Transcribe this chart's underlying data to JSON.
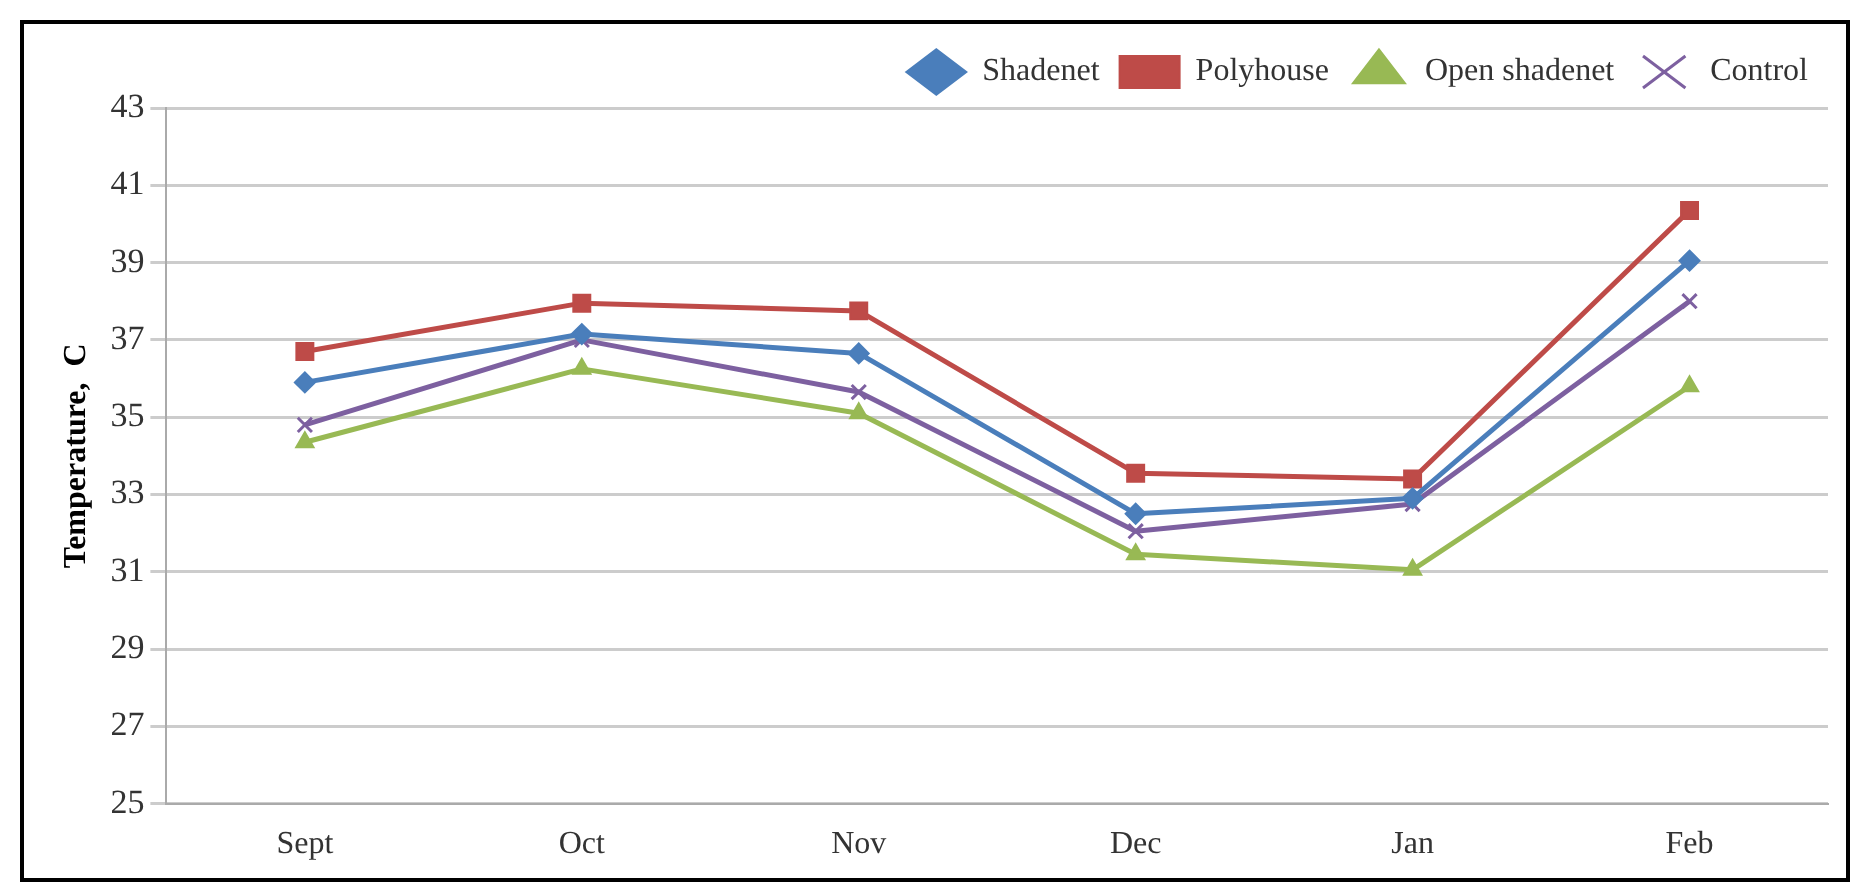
{
  "chart_data": {
    "type": "line",
    "ylabel": "Temperature,  C",
    "categories": [
      "Sept",
      "Oct",
      "Nov",
      "Dec",
      "Jan",
      "Feb"
    ],
    "series": [
      {
        "name": "Shadenet",
        "color": "#4a7ebb",
        "marker": "diamond",
        "values": [
          35.9,
          37.15,
          36.65,
          32.5,
          32.9,
          39.05
        ]
      },
      {
        "name": "Polyhouse",
        "color": "#be4b48",
        "marker": "square",
        "values": [
          36.7,
          37.95,
          37.75,
          33.55,
          33.4,
          40.35
        ]
      },
      {
        "name": "Open shadenet",
        "color": "#98b954",
        "marker": "triangle",
        "values": [
          34.35,
          36.25,
          35.1,
          31.45,
          31.05,
          35.8
        ]
      },
      {
        "name": "Control",
        "color": "#7d60a0",
        "marker": "cross",
        "values": [
          34.8,
          37.0,
          35.65,
          32.05,
          32.75,
          38.0
        ]
      }
    ],
    "ylim": [
      25,
      43
    ],
    "yticks": [
      25,
      27,
      29,
      31,
      33,
      35,
      37,
      39,
      41,
      43
    ],
    "grid": "y",
    "legend": "top right"
  }
}
